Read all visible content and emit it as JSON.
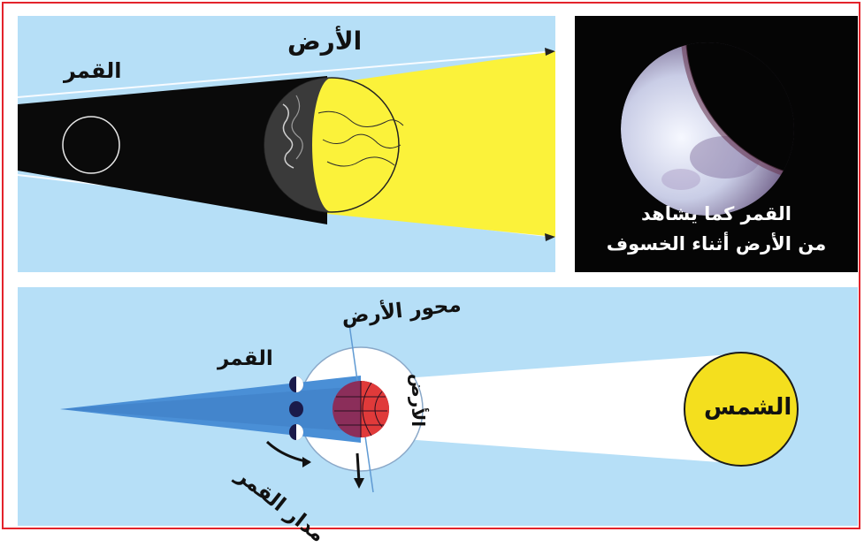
{
  "top_diagram": {
    "moon_label": "القمر",
    "earth_label": "الأرض"
  },
  "photo": {
    "caption_line1": "القمر كما يشاهد",
    "caption_line2": "من الأرض أثناء الخسوف"
  },
  "bottom_diagram": {
    "earth_axis_label": "محور الأرض",
    "moon_label": "القمر",
    "earth_label": "الأرض",
    "sun_label": "الشمس",
    "moon_orbit_label": "مدار القمر"
  },
  "colors": {
    "sky": "#b6dff7",
    "shadow": "#0a0a0a",
    "sunlight": "#fbf23a",
    "sun": "#f4df1e",
    "border": "#e3232b"
  }
}
